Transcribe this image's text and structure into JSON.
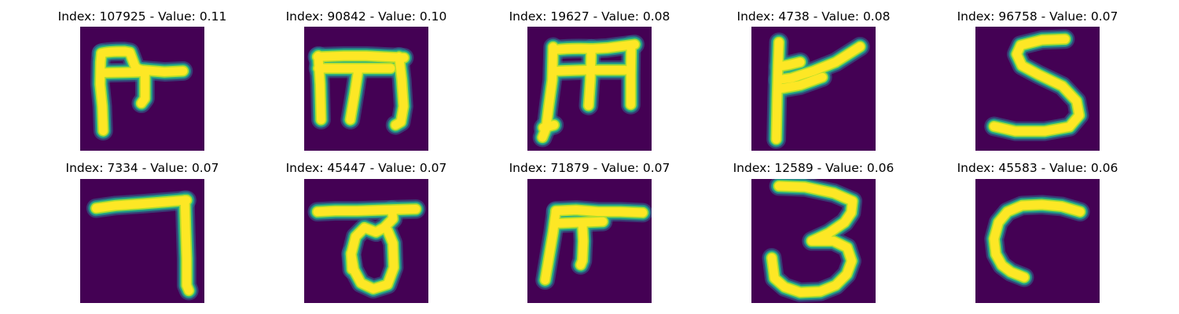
{
  "colors": {
    "background": "#440154",
    "stroke_core": "#fde725",
    "stroke_edge_1": "#b5de2b",
    "stroke_edge_2": "#35b779",
    "stroke_edge_3": "#21918c",
    "stroke_edge_4": "#31688e"
  },
  "panels": [
    {
      "title": "Index: 107925 - Value: 0.11",
      "glyph": "glyph-a"
    },
    {
      "title": "Index: 90842 - Value: 0.10",
      "glyph": "glyph-b"
    },
    {
      "title": "Index: 19627 - Value: 0.08",
      "glyph": "glyph-c"
    },
    {
      "title": "Index: 4738 - Value: 0.08",
      "glyph": "glyph-d"
    },
    {
      "title": "Index: 96758 - Value: 0.07",
      "glyph": "glyph-e"
    },
    {
      "title": "Index: 7334 - Value: 0.07",
      "glyph": "glyph-f"
    },
    {
      "title": "Index: 45447 - Value: 0.07",
      "glyph": "glyph-g"
    },
    {
      "title": "Index: 71879 - Value: 0.07",
      "glyph": "glyph-h"
    },
    {
      "title": "Index: 12589 - Value: 0.06",
      "glyph": "glyph-i"
    },
    {
      "title": "Index: 45583 - Value: 0.06",
      "glyph": "glyph-j"
    }
  ]
}
